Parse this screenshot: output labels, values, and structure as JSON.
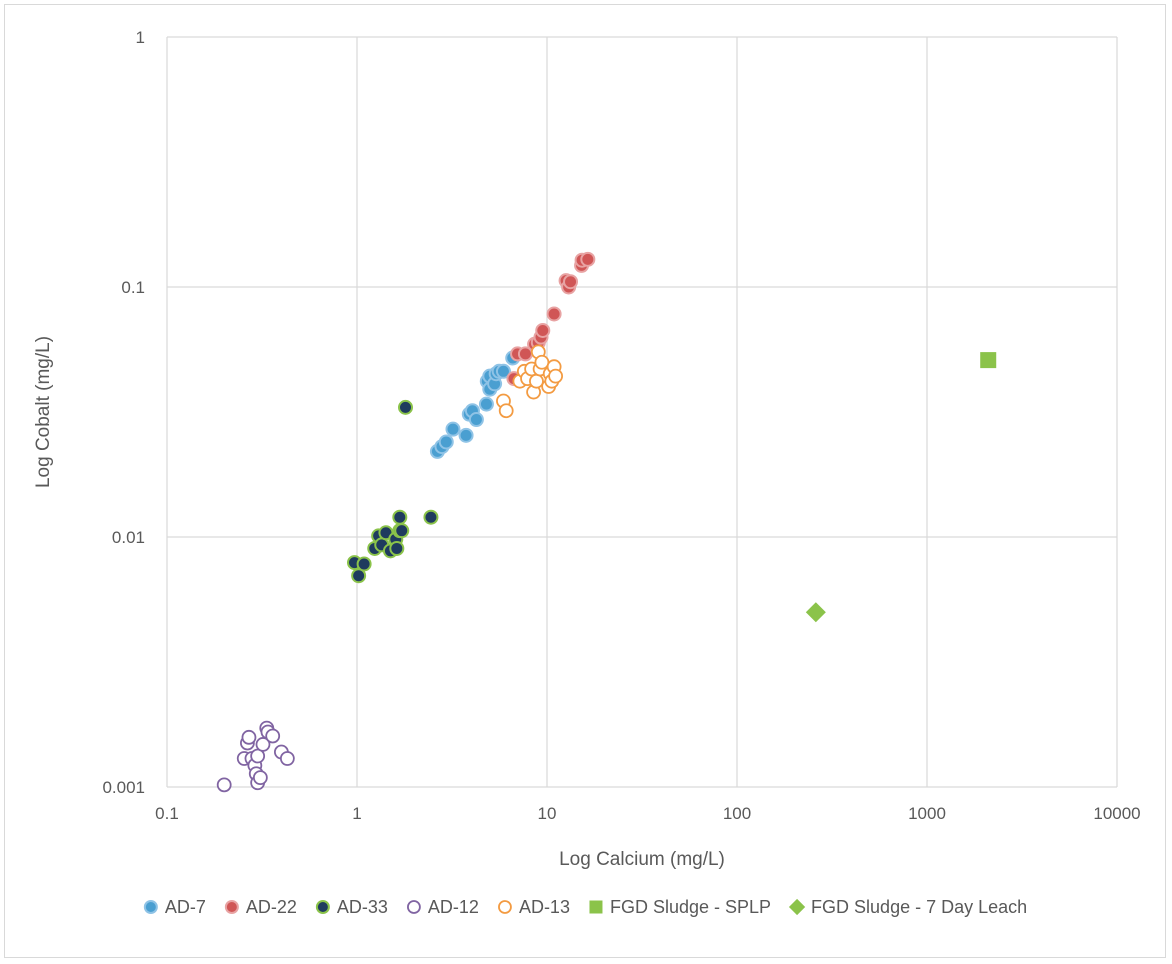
{
  "chart_data": {
    "type": "scatter",
    "xlabel": "Log Calcium (mg/L)",
    "ylabel": "Log Cobalt (mg/L)",
    "xscale": "log",
    "yscale": "log",
    "xlim": [
      0.1,
      10000
    ],
    "ylim": [
      0.001,
      1
    ],
    "xticks": [
      0.1,
      1,
      10,
      100,
      1000,
      10000
    ],
    "yticks": [
      0.001,
      0.01,
      0.1,
      1
    ],
    "xtick_labels": [
      "0.1",
      "1",
      "10",
      "100",
      "1000",
      "10000"
    ],
    "ytick_labels": [
      "0.001",
      "0.01",
      "0.1",
      "1"
    ],
    "grid": true,
    "legend_position": "bottom",
    "series": [
      {
        "name": "AD-7",
        "marker": "circle",
        "fill": "#4a9fd1",
        "stroke": "#8fc3e6",
        "hollow": false,
        "points": [
          [
            2.65,
            0.022
          ],
          [
            2.8,
            0.023
          ],
          [
            2.95,
            0.024
          ],
          [
            3.2,
            0.027
          ],
          [
            3.75,
            0.0255
          ],
          [
            3.9,
            0.031
          ],
          [
            4.05,
            0.032
          ],
          [
            4.25,
            0.0295
          ],
          [
            4.8,
            0.034
          ],
          [
            4.85,
            0.042
          ],
          [
            5.0,
            0.044
          ],
          [
            5.0,
            0.039
          ],
          [
            5.3,
            0.041
          ],
          [
            5.4,
            0.045
          ],
          [
            5.6,
            0.046
          ],
          [
            5.9,
            0.046
          ],
          [
            6.6,
            0.052
          ]
        ]
      },
      {
        "name": "AD-22",
        "marker": "circle",
        "fill": "#d05656",
        "stroke": "#e8a3a3",
        "hollow": false,
        "points": [
          [
            6.7,
            0.043
          ],
          [
            7.0,
            0.054
          ],
          [
            7.7,
            0.054
          ],
          [
            8.6,
            0.059
          ],
          [
            9.0,
            0.06
          ],
          [
            9.3,
            0.063
          ],
          [
            9.5,
            0.067
          ],
          [
            10.9,
            0.078
          ],
          [
            12.6,
            0.106
          ],
          [
            13.0,
            0.1
          ],
          [
            13.3,
            0.105
          ],
          [
            15.2,
            0.122
          ],
          [
            15.3,
            0.128
          ],
          [
            16.4,
            0.129
          ]
        ]
      },
      {
        "name": "AD-33",
        "marker": "circle",
        "fill": "#1f3b5e",
        "stroke": "#8bc34a",
        "hollow": false,
        "points": [
          [
            0.97,
            0.0079
          ],
          [
            1.02,
            0.007
          ],
          [
            1.09,
            0.0078
          ],
          [
            1.24,
            0.009
          ],
          [
            1.3,
            0.0101
          ],
          [
            1.35,
            0.0093
          ],
          [
            1.42,
            0.0104
          ],
          [
            1.5,
            0.0088
          ],
          [
            1.6,
            0.0098
          ],
          [
            1.62,
            0.009
          ],
          [
            1.68,
            0.0106
          ],
          [
            1.68,
            0.012
          ],
          [
            1.72,
            0.0106
          ],
          [
            1.8,
            0.033
          ],
          [
            2.45,
            0.012
          ]
        ]
      },
      {
        "name": "AD-12",
        "marker": "circle",
        "fill": "#ffffff",
        "stroke": "#8064a2",
        "hollow": true,
        "points": [
          [
            0.2,
            0.00102
          ],
          [
            0.255,
            0.0013
          ],
          [
            0.265,
            0.0015
          ],
          [
            0.27,
            0.00158
          ],
          [
            0.28,
            0.0013
          ],
          [
            0.29,
            0.00122
          ],
          [
            0.295,
            0.00113
          ],
          [
            0.3,
            0.00133
          ],
          [
            0.3,
            0.00104
          ],
          [
            0.31,
            0.00109
          ],
          [
            0.32,
            0.00148
          ],
          [
            0.335,
            0.00172
          ],
          [
            0.34,
            0.00166
          ],
          [
            0.36,
            0.0016
          ],
          [
            0.4,
            0.00138
          ],
          [
            0.43,
            0.0013
          ]
        ]
      },
      {
        "name": "AD-13",
        "marker": "circle",
        "fill": "#ffffff",
        "stroke": "#f39b42",
        "hollow": true,
        "points": [
          [
            5.9,
            0.035
          ],
          [
            6.1,
            0.032
          ],
          [
            7.2,
            0.042
          ],
          [
            7.6,
            0.046
          ],
          [
            7.9,
            0.043
          ],
          [
            8.3,
            0.047
          ],
          [
            8.5,
            0.038
          ],
          [
            8.8,
            0.042
          ],
          [
            9.0,
            0.055
          ],
          [
            9.2,
            0.047
          ],
          [
            9.4,
            0.05
          ],
          [
            10.2,
            0.04
          ],
          [
            10.4,
            0.045
          ],
          [
            10.6,
            0.042
          ],
          [
            10.9,
            0.048
          ],
          [
            11.1,
            0.044
          ]
        ]
      },
      {
        "name": "FGD Sludge - SPLP",
        "marker": "square",
        "fill": "#8bc34a",
        "stroke": "#8bc34a",
        "hollow": false,
        "points": [
          [
            2100,
            0.051
          ]
        ]
      },
      {
        "name": "FGD Sludge - 7 Day Leach",
        "marker": "diamond",
        "fill": "#8bc34a",
        "stroke": "#8bc34a",
        "hollow": false,
        "points": [
          [
            260,
            0.005
          ]
        ]
      }
    ]
  }
}
